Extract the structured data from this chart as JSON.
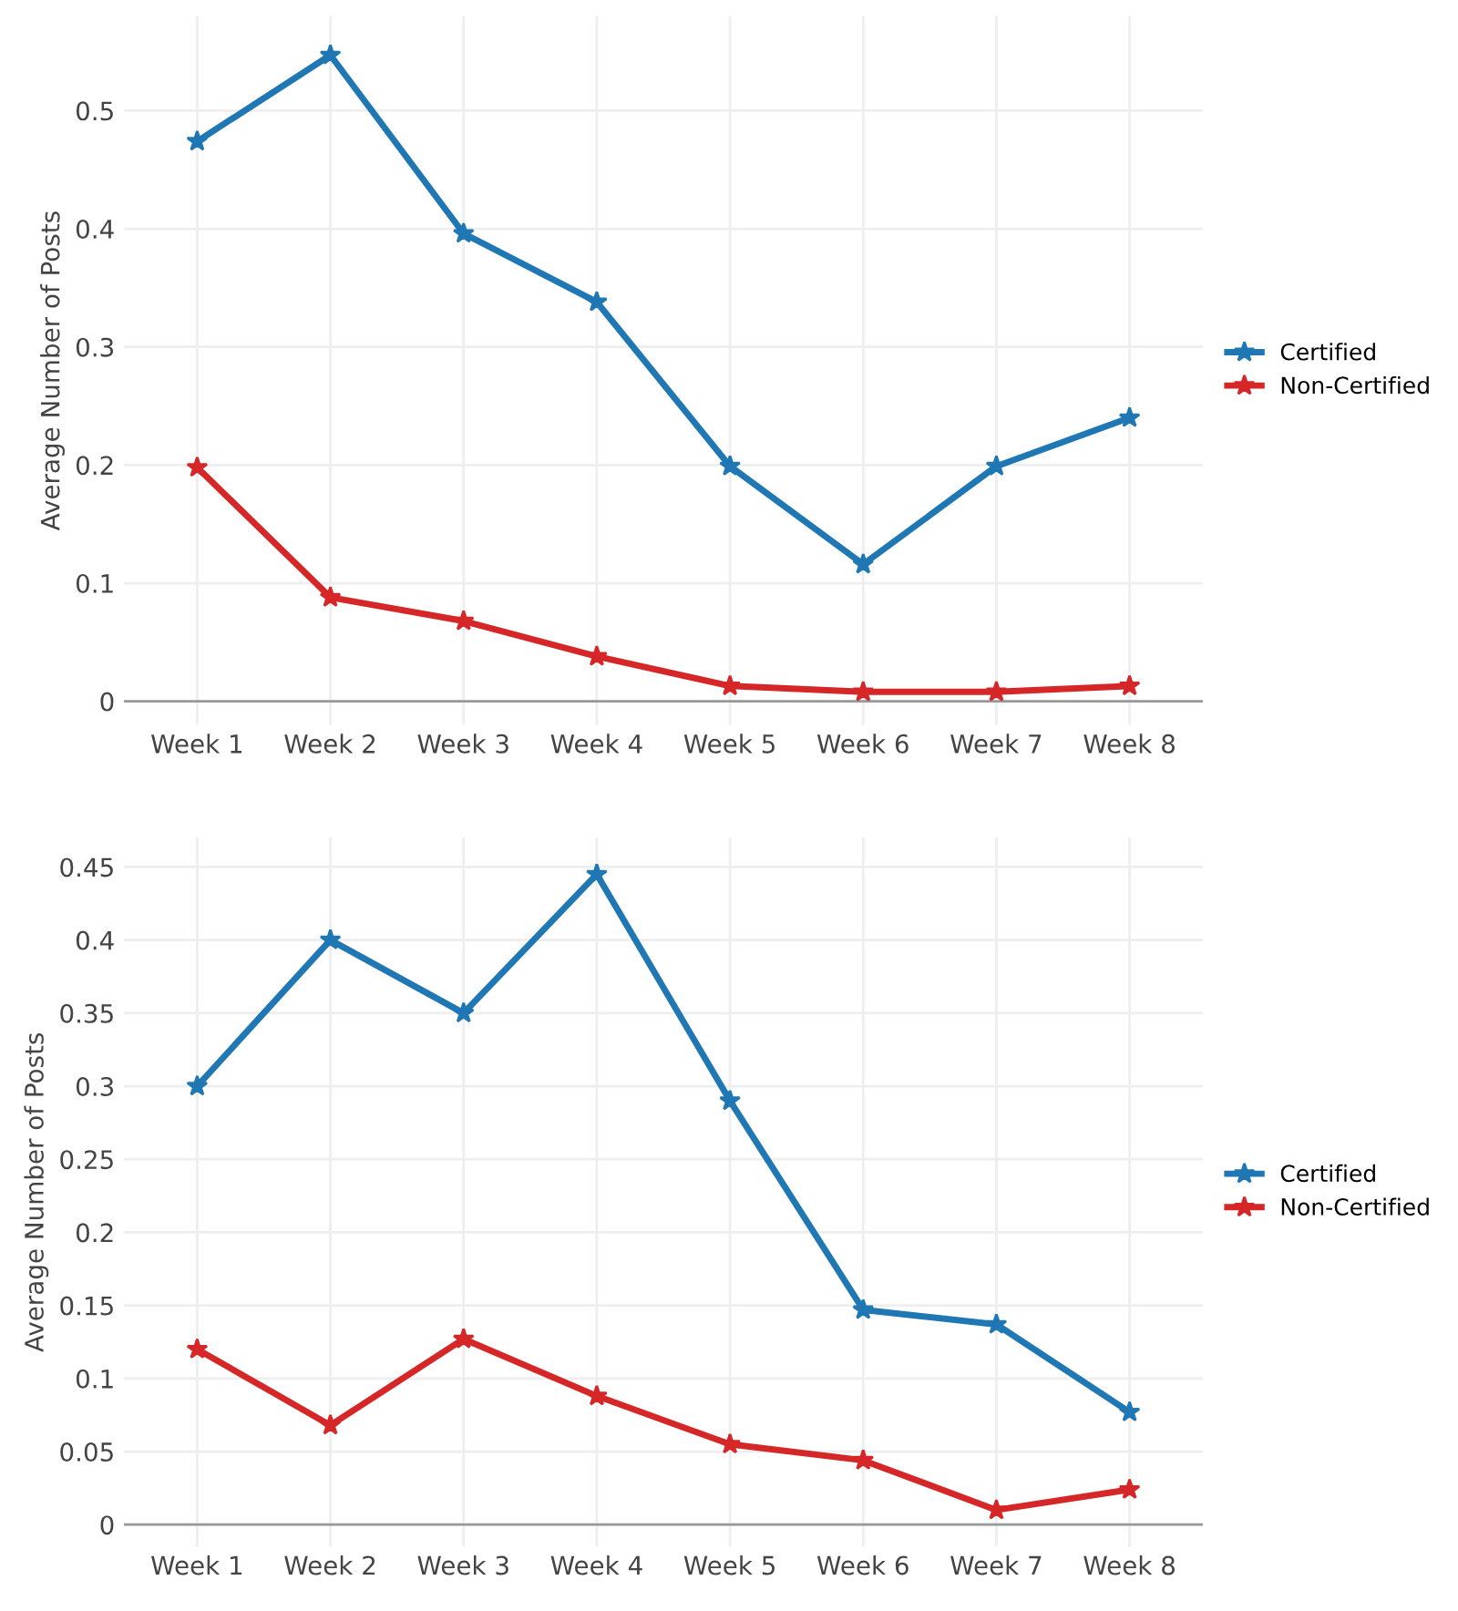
{
  "chart_data": [
    {
      "type": "line",
      "ylabel": "Average Number of Posts",
      "categories": [
        "Week 1",
        "Week 2",
        "Week 3",
        "Week 4",
        "Week 5",
        "Week 6",
        "Week 7",
        "Week 8"
      ],
      "series": [
        {
          "name": "Certified",
          "color": "#1f77b4",
          "values": [
            0.474,
            0.547,
            0.396,
            0.338,
            0.199,
            0.116,
            0.199,
            0.24
          ]
        },
        {
          "name": "Non-Certified",
          "color": "#d62728",
          "values": [
            0.198,
            0.088,
            0.068,
            0.038,
            0.013,
            0.008,
            0.008,
            0.013
          ]
        }
      ],
      "ylim": [
        -0.02,
        0.58
      ],
      "yticks": [
        0,
        0.1,
        0.2,
        0.3,
        0.4,
        0.5
      ],
      "grid": true,
      "legend": "right",
      "marker": "star",
      "line_style": "solid"
    },
    {
      "type": "line",
      "ylabel": "Average Number of Posts",
      "categories": [
        "Week 1",
        "Week 2",
        "Week 3",
        "Week 4",
        "Week 5",
        "Week 6",
        "Week 7",
        "Week 8"
      ],
      "series": [
        {
          "name": "Certified",
          "color": "#1f77b4",
          "values": [
            0.3,
            0.4,
            0.35,
            0.445,
            0.29,
            0.147,
            0.137,
            0.077
          ]
        },
        {
          "name": "Non-Certified",
          "color": "#d62728",
          "values": [
            0.12,
            0.068,
            0.127,
            0.088,
            0.055,
            0.044,
            0.01,
            0.024
          ]
        }
      ],
      "ylim": [
        -0.015,
        0.47
      ],
      "yticks": [
        0,
        0.05,
        0.1,
        0.15,
        0.2,
        0.25,
        0.3,
        0.35,
        0.4,
        0.45
      ],
      "grid": true,
      "legend": "right",
      "marker": "star",
      "line_style": "solid"
    }
  ]
}
